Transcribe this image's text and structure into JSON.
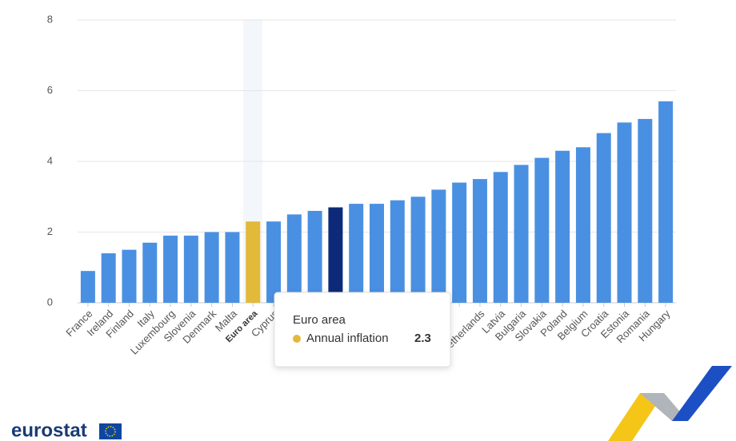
{
  "chart_data": {
    "type": "bar",
    "categories": [
      "France",
      "Ireland",
      "Finland",
      "Italy",
      "Luxembourg",
      "Slovenia",
      "Denmark",
      "Malta",
      "Euro area",
      "Cyprus",
      null,
      null,
      null,
      null,
      null,
      null,
      null,
      null,
      null,
      "Netherlands",
      "Latvia",
      "Bulgaria",
      "Slovakia",
      "Poland",
      "Belgium",
      "Croatia",
      "Estonia",
      "Romania",
      "Hungary"
    ],
    "series": [
      {
        "name": "Annual inflation",
        "values": [
          0.9,
          1.4,
          1.5,
          1.7,
          1.9,
          1.9,
          2.0,
          2.0,
          2.3,
          2.3,
          2.5,
          2.6,
          2.7,
          2.8,
          2.8,
          2.9,
          3.0,
          3.2,
          3.4,
          3.5,
          3.7,
          3.9,
          4.1,
          4.3,
          4.4,
          4.8,
          5.1,
          5.2,
          5.7
        ],
        "colors": [
          "#4a90e2",
          "#4a90e2",
          "#4a90e2",
          "#4a90e2",
          "#4a90e2",
          "#4a90e2",
          "#4a90e2",
          "#4a90e2",
          "#e3b93a",
          "#4a90e2",
          "#4a90e2",
          "#4a90e2",
          "#0d2a78",
          "#4a90e2",
          "#4a90e2",
          "#4a90e2",
          "#4a90e2",
          "#4a90e2",
          "#4a90e2",
          "#4a90e2",
          "#4a90e2",
          "#4a90e2",
          "#4a90e2",
          "#4a90e2",
          "#4a90e2",
          "#4a90e2",
          "#4a90e2",
          "#4a90e2",
          "#4a90e2"
        ]
      }
    ],
    "ylim": [
      0,
      8
    ],
    "yticks": [
      0,
      2,
      4,
      6,
      8
    ],
    "grid": true,
    "logo": "eurostat"
  }
}
